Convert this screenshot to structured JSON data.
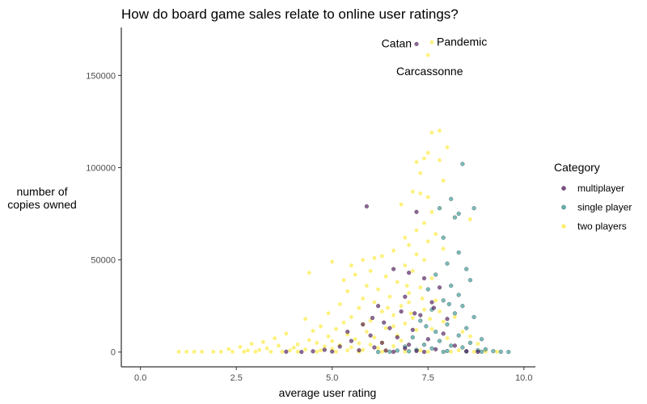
{
  "chart_data": {
    "type": "scatter",
    "title": "How do board game sales relate to online user ratings?",
    "xlabel": "average user rating",
    "ylabel": [
      "number of",
      "copies owned"
    ],
    "xlim": [
      -0.5,
      10.3
    ],
    "ylim": [
      -8000,
      176000
    ],
    "xticks": [
      0,
      2.5,
      5,
      7.5,
      10
    ],
    "xtick_labels": [
      "0.0",
      "2.5",
      "5.0",
      "7.5",
      "10.0"
    ],
    "yticks": [
      0,
      50000,
      100000,
      150000
    ],
    "ytick_labels": [
      "0",
      "50000",
      "100000",
      "150000"
    ],
    "grid": false,
    "legend": {
      "title": "Category",
      "position": "right"
    },
    "colors": {
      "multiplayer": "#440154",
      "single player": "#21908C",
      "two players": "#FDE725"
    },
    "series": [
      {
        "name": "multiplayer",
        "points": [
          [
            7.2,
            167000
          ],
          [
            5.9,
            79000
          ],
          [
            7.2,
            76000
          ],
          [
            6.6,
            45000
          ],
          [
            7.0,
            43000
          ],
          [
            7.4,
            40000
          ],
          [
            7.8,
            35000
          ],
          [
            6.9,
            30000
          ],
          [
            7.6,
            27000
          ],
          [
            6.2,
            25000
          ],
          [
            6.8,
            22000
          ],
          [
            7.3,
            20000
          ],
          [
            8.0,
            18000
          ],
          [
            5.8,
            15000
          ],
          [
            6.5,
            13000
          ],
          [
            7.1,
            12000
          ],
          [
            7.9,
            10000
          ],
          [
            6.0,
            9000
          ],
          [
            6.7,
            8000
          ],
          [
            7.5,
            7000
          ],
          [
            5.5,
            6000
          ],
          [
            6.3,
            5000
          ],
          [
            7.0,
            4000
          ],
          [
            8.2,
            3500
          ],
          [
            5.2,
            3000
          ],
          [
            6.1,
            2500
          ],
          [
            6.9,
            2000
          ],
          [
            7.7,
            1500
          ],
          [
            4.8,
            1200
          ],
          [
            5.7,
            1000
          ],
          [
            6.4,
            800
          ],
          [
            7.2,
            600
          ],
          [
            8.5,
            500
          ],
          [
            4.5,
            400
          ],
          [
            5.0,
            300
          ],
          [
            3.8,
            200
          ],
          [
            6.6,
            150
          ],
          [
            7.4,
            100
          ],
          [
            8.8,
            100
          ],
          [
            4.2,
            50
          ],
          [
            5.4,
            11000
          ],
          [
            6.35,
            16000
          ],
          [
            7.15,
            21000
          ],
          [
            7.65,
            24000
          ],
          [
            6.05,
            18500
          ]
        ]
      },
      {
        "name": "single player",
        "points": [
          [
            8.4,
            102000
          ],
          [
            8.1,
            83000
          ],
          [
            8.7,
            78000
          ],
          [
            7.8,
            78000
          ],
          [
            8.3,
            75000
          ],
          [
            8.2,
            73000
          ],
          [
            7.9,
            62000
          ],
          [
            8.3,
            54000
          ],
          [
            8.0,
            48000
          ],
          [
            8.5,
            45000
          ],
          [
            7.7,
            42000
          ],
          [
            8.6,
            39000
          ],
          [
            8.1,
            36000
          ],
          [
            7.5,
            34000
          ],
          [
            8.3,
            31000
          ],
          [
            7.9,
            28000
          ],
          [
            8.4,
            25000
          ],
          [
            7.6,
            23000
          ],
          [
            8.2,
            21000
          ],
          [
            8.7,
            19000
          ],
          [
            7.3,
            17000
          ],
          [
            8.0,
            15000
          ],
          [
            8.5,
            13000
          ],
          [
            7.7,
            11000
          ],
          [
            8.3,
            9000
          ],
          [
            7.1,
            8000
          ],
          [
            8.9,
            7000
          ],
          [
            7.8,
            6000
          ],
          [
            8.6,
            5000
          ],
          [
            7.4,
            4000
          ],
          [
            8.1,
            3500
          ],
          [
            6.9,
            3000
          ],
          [
            8.4,
            2500
          ],
          [
            7.6,
            2000
          ],
          [
            9.0,
            1500
          ],
          [
            7.2,
            1200
          ],
          [
            8.8,
            1000
          ],
          [
            6.7,
            800
          ],
          [
            8.0,
            600
          ],
          [
            9.2,
            500
          ],
          [
            7.0,
            400
          ],
          [
            8.5,
            300
          ],
          [
            6.5,
            200
          ],
          [
            9.4,
            150
          ],
          [
            7.9,
            100
          ],
          [
            9.6,
            50
          ],
          [
            6.2,
            50
          ],
          [
            8.9,
            200
          ],
          [
            7.45,
            14000
          ],
          [
            8.05,
            26000
          ]
        ]
      },
      {
        "name": "two players",
        "points": [
          [
            7.6,
            168000
          ],
          [
            7.5,
            161000
          ],
          [
            7.8,
            120000
          ],
          [
            7.6,
            119000
          ],
          [
            8.0,
            111000
          ],
          [
            7.5,
            108000
          ],
          [
            7.4,
            105000
          ],
          [
            7.2,
            103000
          ],
          [
            7.8,
            104000
          ],
          [
            7.3,
            97000
          ],
          [
            7.9,
            93000
          ],
          [
            7.1,
            87000
          ],
          [
            7.3,
            86000
          ],
          [
            7.5,
            84000
          ],
          [
            6.8,
            80000
          ],
          [
            7.6,
            76000
          ],
          [
            8.6,
            72000
          ],
          [
            7.4,
            70000
          ],
          [
            7.2,
            66000
          ],
          [
            7.7,
            64000
          ],
          [
            6.9,
            62000
          ],
          [
            7.5,
            60000
          ],
          [
            7.0,
            58000
          ],
          [
            7.9,
            56000
          ],
          [
            6.6,
            55000
          ],
          [
            6.3,
            52000
          ],
          [
            7.2,
            53000
          ],
          [
            5.8,
            50000
          ],
          [
            6.1,
            51000
          ],
          [
            7.4,
            50000
          ],
          [
            5.0,
            49000
          ],
          [
            5.5,
            47000
          ],
          [
            6.9,
            47000
          ],
          [
            4.4,
            43000
          ],
          [
            6.0,
            44000
          ],
          [
            7.1,
            44000
          ],
          [
            5.6,
            42000
          ],
          [
            6.4,
            41000
          ],
          [
            7.6,
            40000
          ],
          [
            5.3,
            39000
          ],
          [
            6.7,
            38000
          ],
          [
            5.9,
            36000
          ],
          [
            7.3,
            35000
          ],
          [
            6.2,
            34000
          ],
          [
            5.4,
            33000
          ],
          [
            7.0,
            32000
          ],
          [
            6.5,
            30000
          ],
          [
            5.8,
            29000
          ],
          [
            7.7,
            28000
          ],
          [
            6.1,
            27000
          ],
          [
            5.2,
            26000
          ],
          [
            6.8,
            25000
          ],
          [
            5.7,
            24000
          ],
          [
            7.4,
            23000
          ],
          [
            6.3,
            22000
          ],
          [
            4.9,
            21000
          ],
          [
            6.6,
            20000
          ],
          [
            5.5,
            19000
          ],
          [
            7.1,
            18500
          ],
          [
            4.3,
            18000
          ],
          [
            6.0,
            17000
          ],
          [
            5.3,
            16000
          ],
          [
            6.9,
            15500
          ],
          [
            5.8,
            15000
          ],
          [
            4.7,
            14000
          ],
          [
            6.4,
            13000
          ],
          [
            5.1,
            12500
          ],
          [
            7.2,
            12000
          ],
          [
            4.5,
            11500
          ],
          [
            5.9,
            11000
          ],
          [
            3.8,
            10000
          ],
          [
            5.4,
            9500
          ],
          [
            6.7,
            9000
          ],
          [
            4.9,
            8500
          ],
          [
            6.1,
            8000
          ],
          [
            3.5,
            7500
          ],
          [
            5.6,
            7000
          ],
          [
            4.4,
            6500
          ],
          [
            6.8,
            6200
          ],
          [
            5.0,
            6000
          ],
          [
            3.2,
            5500
          ],
          [
            6.3,
            5200
          ],
          [
            4.6,
            5000
          ],
          [
            5.7,
            4800
          ],
          [
            2.9,
            4500
          ],
          [
            4.1,
            4200
          ],
          [
            6.0,
            4000
          ],
          [
            5.2,
            3800
          ],
          [
            3.6,
            3500
          ],
          [
            6.6,
            3200
          ],
          [
            4.8,
            3000
          ],
          [
            2.6,
            2800
          ],
          [
            5.5,
            2600
          ],
          [
            4.0,
            2400
          ],
          [
            6.2,
            2200
          ],
          [
            3.3,
            2000
          ],
          [
            5.0,
            1800
          ],
          [
            2.3,
            1600
          ],
          [
            4.3,
            1400
          ],
          [
            5.8,
            1200
          ],
          [
            1.0,
            200
          ],
          [
            1.2,
            200
          ],
          [
            1.4,
            200
          ],
          [
            1.6,
            200
          ],
          [
            1.9,
            200
          ],
          [
            2.1,
            200
          ],
          [
            2.4,
            200
          ],
          [
            2.7,
            200
          ],
          [
            3.0,
            200
          ],
          [
            3.4,
            200
          ],
          [
            3.7,
            200
          ],
          [
            4.1,
            200
          ],
          [
            4.6,
            200
          ],
          [
            5.1,
            200
          ],
          [
            5.7,
            200
          ],
          [
            6.3,
            200
          ],
          [
            6.9,
            200
          ],
          [
            7.5,
            200
          ],
          [
            8.1,
            200
          ],
          [
            8.7,
            200
          ],
          [
            9.0,
            200
          ],
          [
            9.3,
            200
          ],
          [
            2.8,
            900
          ],
          [
            3.9,
            900
          ],
          [
            4.7,
            900
          ],
          [
            5.4,
            900
          ],
          [
            6.4,
            900
          ],
          [
            7.3,
            900
          ],
          [
            8.3,
            900
          ],
          [
            3.1,
            1100
          ],
          [
            7.8,
            22000
          ],
          [
            8.2,
            19000
          ],
          [
            7.0,
            27000
          ],
          [
            6.6,
            14000
          ],
          [
            7.9,
            16500
          ],
          [
            8.4,
            11000
          ],
          [
            8.6,
            8500
          ],
          [
            7.6,
            12500
          ],
          [
            8.0,
            7500
          ],
          [
            8.8,
            4500
          ],
          [
            6.95,
            36000
          ],
          [
            7.35,
            29000
          ],
          [
            7.05,
            21000
          ],
          [
            6.45,
            24000
          ],
          [
            7.55,
            18000
          ]
        ]
      }
    ],
    "annotations": [
      {
        "text": "Catan",
        "x": 7.2,
        "y": 167000
      },
      {
        "text": "Pandemic",
        "x": 7.6,
        "y": 168000
      },
      {
        "text": "Carcassonne",
        "x": 7.5,
        "y": 161000
      }
    ]
  }
}
